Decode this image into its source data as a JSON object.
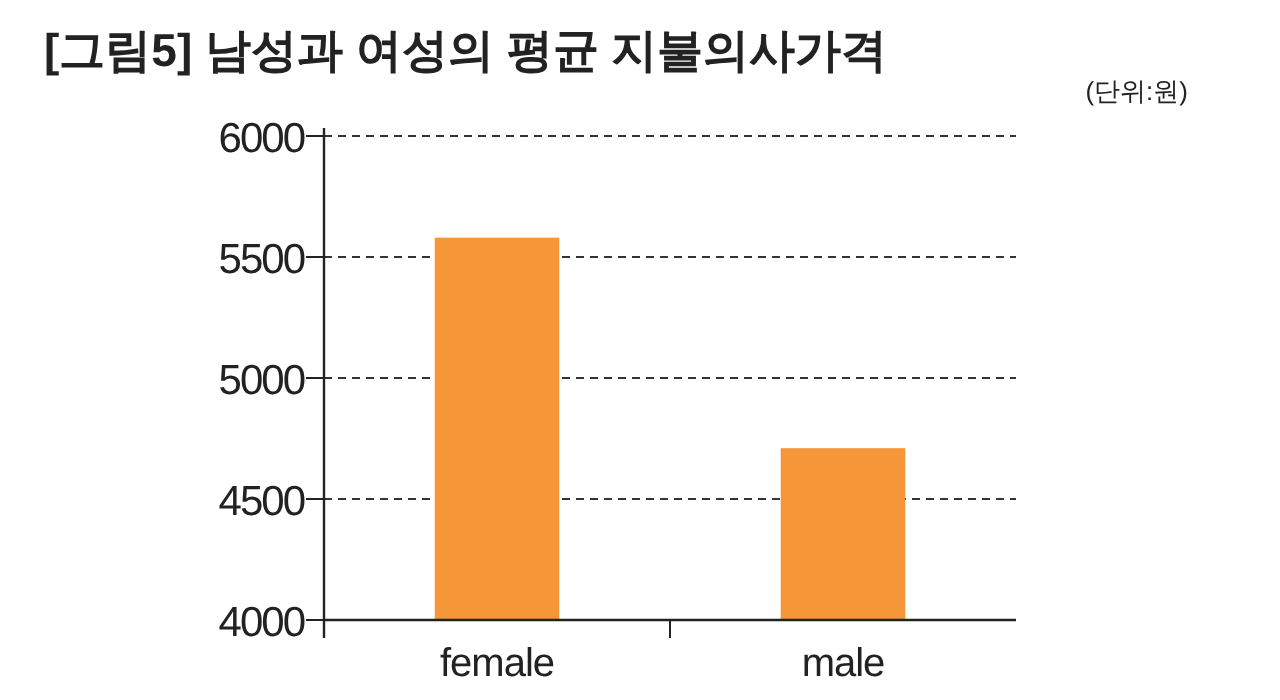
{
  "chart_data": {
    "type": "bar",
    "title": "[그림5] 남성과 여성의 평균 지불의사가격",
    "annotations": [
      "(단위:원)"
    ],
    "categories": [
      "female",
      "male"
    ],
    "values": [
      5580,
      4710
    ],
    "color": "#f59738",
    "ylim": [
      4000,
      6000
    ],
    "yticks": [
      4000,
      4500,
      5000,
      5500,
      6000
    ],
    "grid": "y"
  }
}
